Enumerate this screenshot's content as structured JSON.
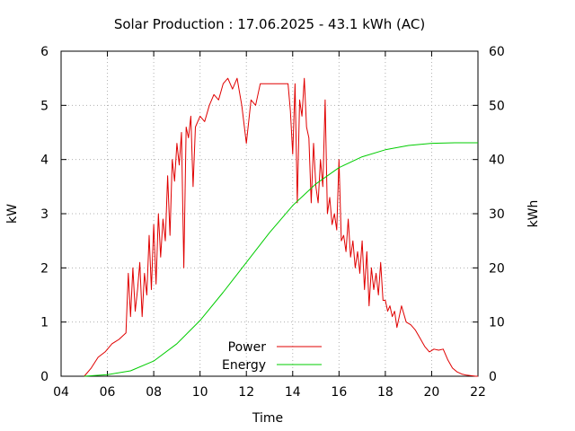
{
  "chart_data": {
    "type": "line",
    "title": "Solar Production : 17.06.2025 - 43.1 kWh (AC)",
    "xlabel": "Time",
    "ylabel": "kW",
    "y2label": "kWh",
    "xlim": [
      4,
      22
    ],
    "ylim": [
      0,
      6
    ],
    "y2lim": [
      0,
      60
    ],
    "x_ticks": [
      "04",
      "06",
      "08",
      "10",
      "12",
      "14",
      "16",
      "18",
      "20",
      "22"
    ],
    "y_ticks": [
      "0",
      "1",
      "2",
      "3",
      "4",
      "5",
      "6"
    ],
    "y2_ticks": [
      "0",
      "10",
      "20",
      "30",
      "40",
      "50",
      "60"
    ],
    "grid": true,
    "legend_position": "bottom-center",
    "series": [
      {
        "name": "Power",
        "axis": "y",
        "color": "#e00000",
        "x": [
          5.0,
          5.3,
          5.6,
          5.9,
          6.2,
          6.5,
          6.8,
          6.9,
          7.0,
          7.1,
          7.2,
          7.3,
          7.4,
          7.5,
          7.6,
          7.7,
          7.8,
          7.9,
          8.0,
          8.1,
          8.2,
          8.3,
          8.4,
          8.5,
          8.6,
          8.7,
          8.8,
          8.9,
          9.0,
          9.1,
          9.2,
          9.3,
          9.4,
          9.5,
          9.6,
          9.7,
          9.8,
          9.9,
          10.0,
          10.2,
          10.4,
          10.6,
          10.8,
          11.0,
          11.2,
          11.4,
          11.6,
          11.8,
          12.0,
          12.2,
          12.4,
          12.6,
          12.8,
          13.0,
          13.2,
          13.4,
          13.6,
          13.8,
          13.9,
          14.0,
          14.1,
          14.2,
          14.3,
          14.4,
          14.5,
          14.6,
          14.7,
          14.8,
          14.9,
          15.0,
          15.1,
          15.2,
          15.3,
          15.4,
          15.5,
          15.6,
          15.7,
          15.8,
          15.9,
          16.0,
          16.1,
          16.2,
          16.3,
          16.4,
          16.5,
          16.6,
          16.7,
          16.8,
          16.9,
          17.0,
          17.1,
          17.2,
          17.3,
          17.4,
          17.5,
          17.6,
          17.7,
          17.8,
          17.9,
          18.0,
          18.1,
          18.2,
          18.3,
          18.4,
          18.5,
          18.7,
          18.9,
          19.1,
          19.3,
          19.5,
          19.7,
          19.9,
          20.1,
          20.3,
          20.5,
          20.7,
          20.9,
          21.1,
          21.3,
          21.5,
          21.7,
          21.9,
          22.0
        ],
        "y": [
          0.0,
          0.15,
          0.35,
          0.45,
          0.6,
          0.68,
          0.8,
          1.9,
          1.1,
          2.0,
          1.2,
          1.6,
          2.1,
          1.1,
          1.9,
          1.5,
          2.6,
          1.6,
          2.8,
          1.7,
          3.0,
          2.2,
          2.9,
          2.5,
          3.7,
          2.6,
          4.0,
          3.6,
          4.3,
          3.9,
          4.5,
          2.0,
          4.6,
          4.4,
          4.8,
          3.5,
          4.6,
          4.7,
          4.8,
          4.7,
          5.0,
          5.2,
          5.1,
          5.4,
          5.5,
          5.3,
          5.5,
          5.0,
          4.3,
          5.1,
          5.0,
          5.4,
          5.4,
          5.4,
          5.4,
          5.4,
          5.4,
          5.4,
          4.9,
          4.1,
          5.4,
          3.2,
          5.1,
          4.8,
          5.5,
          4.6,
          4.4,
          3.2,
          4.3,
          3.5,
          3.2,
          4.0,
          3.5,
          5.1,
          3.0,
          3.3,
          2.8,
          3.0,
          2.7,
          4.0,
          2.5,
          2.6,
          2.3,
          2.9,
          2.2,
          2.5,
          2.0,
          2.3,
          1.9,
          2.5,
          1.6,
          2.3,
          1.3,
          2.0,
          1.6,
          1.9,
          1.5,
          2.1,
          1.4,
          1.4,
          1.2,
          1.3,
          1.1,
          1.2,
          0.9,
          1.3,
          1.0,
          0.95,
          0.85,
          0.7,
          0.55,
          0.45,
          0.5,
          0.48,
          0.5,
          0.3,
          0.15,
          0.08,
          0.04,
          0.02,
          0.01,
          0.0,
          0.0
        ]
      },
      {
        "name": "Energy",
        "axis": "y2",
        "color": "#00cc00",
        "x": [
          5.0,
          6.0,
          7.0,
          8.0,
          9.0,
          10.0,
          11.0,
          12.0,
          13.0,
          14.0,
          15.0,
          16.0,
          17.0,
          18.0,
          19.0,
          20.0,
          21.0,
          22.0
        ],
        "y": [
          0.0,
          0.3,
          1.0,
          2.8,
          6.0,
          10.3,
          15.5,
          21.0,
          26.5,
          31.5,
          35.5,
          38.5,
          40.5,
          41.8,
          42.6,
          43.0,
          43.1,
          43.1
        ]
      }
    ]
  }
}
